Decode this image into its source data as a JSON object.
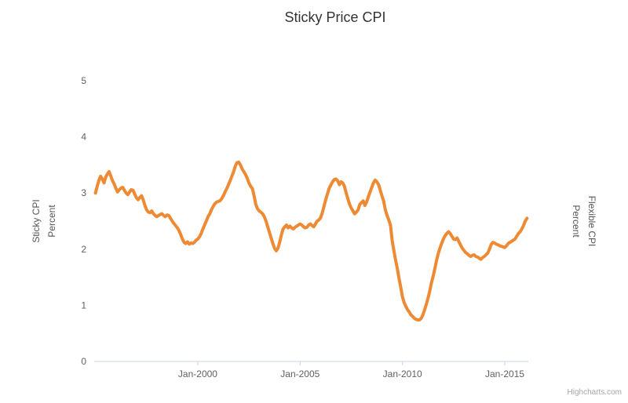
{
  "chart": {
    "title": "Sticky Price CPI",
    "credit": "Highcharts.com",
    "left_axis_title_line1": "Sticky CPI",
    "left_axis_title_line2": "Percent",
    "right_axis_title_line1": "Flexible CPI",
    "right_axis_title_line2": "Percent"
  },
  "chart_data": {
    "type": "line",
    "title": "Sticky Price CPI",
    "xlabel": "",
    "ylabel_left": "Sticky CPI Percent",
    "ylabel_right": "Flexible CPI Percent",
    "grid": false,
    "legend": false,
    "ylim": [
      0,
      5
    ],
    "y_ticks": [
      0,
      1,
      2,
      3,
      4,
      5
    ],
    "x_ticks": [
      {
        "label": "Jan-2000",
        "month": "2000-01"
      },
      {
        "label": "Jan-2005",
        "month": "2005-01"
      },
      {
        "label": "Jan-2010",
        "month": "2010-01"
      },
      {
        "label": "Jan-2015",
        "month": "2015-01"
      }
    ],
    "axis_color": "#c8d4e0",
    "series": [
      {
        "name": "Sticky CPI",
        "color": "#ee8a34",
        "interval": "monthly",
        "start_month": "1995-01",
        "end_month": "2016-02",
        "values": [
          3.0,
          3.12,
          3.22,
          3.3,
          3.25,
          3.18,
          3.28,
          3.34,
          3.38,
          3.3,
          3.22,
          3.16,
          3.08,
          3.02,
          3.06,
          3.09,
          3.1,
          3.05,
          3.0,
          2.97,
          3.02,
          3.06,
          3.05,
          2.98,
          2.92,
          2.88,
          2.92,
          2.95,
          2.88,
          2.78,
          2.7,
          2.66,
          2.65,
          2.68,
          2.63,
          2.6,
          2.58,
          2.6,
          2.62,
          2.63,
          2.6,
          2.58,
          2.61,
          2.6,
          2.55,
          2.5,
          2.46,
          2.42,
          2.38,
          2.33,
          2.26,
          2.18,
          2.12,
          2.1,
          2.13,
          2.09,
          2.11,
          2.1,
          2.12,
          2.16,
          2.18,
          2.22,
          2.28,
          2.36,
          2.43,
          2.5,
          2.58,
          2.63,
          2.7,
          2.76,
          2.81,
          2.84,
          2.85,
          2.86,
          2.9,
          2.95,
          3.02,
          3.08,
          3.15,
          3.22,
          3.3,
          3.38,
          3.48,
          3.54,
          3.55,
          3.5,
          3.43,
          3.38,
          3.33,
          3.26,
          3.18,
          3.12,
          3.08,
          2.95,
          2.8,
          2.72,
          2.68,
          2.66,
          2.63,
          2.58,
          2.5,
          2.4,
          2.3,
          2.2,
          2.1,
          2.02,
          1.97,
          2.02,
          2.12,
          2.25,
          2.36,
          2.4,
          2.43,
          2.38,
          2.41,
          2.38,
          2.36,
          2.39,
          2.41,
          2.43,
          2.45,
          2.43,
          2.4,
          2.38,
          2.39,
          2.43,
          2.45,
          2.42,
          2.4,
          2.45,
          2.5,
          2.52,
          2.56,
          2.65,
          2.76,
          2.88,
          2.98,
          3.08,
          3.14,
          3.2,
          3.24,
          3.25,
          3.22,
          3.15,
          3.2,
          3.18,
          3.12,
          3.0,
          2.9,
          2.8,
          2.73,
          2.68,
          2.63,
          2.66,
          2.7,
          2.8,
          2.83,
          2.86,
          2.78,
          2.84,
          2.93,
          3.02,
          3.1,
          3.18,
          3.23,
          3.2,
          3.15,
          3.05,
          2.95,
          2.85,
          2.7,
          2.6,
          2.52,
          2.42,
          2.15,
          1.97,
          1.8,
          1.65,
          1.48,
          1.32,
          1.15,
          1.05,
          0.98,
          0.92,
          0.88,
          0.83,
          0.8,
          0.77,
          0.75,
          0.74,
          0.74,
          0.77,
          0.83,
          0.92,
          1.02,
          1.13,
          1.25,
          1.4,
          1.52,
          1.65,
          1.8,
          1.92,
          2.02,
          2.1,
          2.18,
          2.24,
          2.28,
          2.31,
          2.28,
          2.23,
          2.18,
          2.17,
          2.2,
          2.14,
          2.08,
          2.02,
          1.98,
          1.94,
          1.92,
          1.89,
          1.87,
          1.89,
          1.9,
          1.87,
          1.86,
          1.84,
          1.82,
          1.85,
          1.87,
          1.9,
          1.93,
          2.0,
          2.08,
          2.12,
          2.11,
          2.09,
          2.08,
          2.06,
          2.05,
          2.04,
          2.03,
          2.06,
          2.1,
          2.12,
          2.14,
          2.16,
          2.18,
          2.23,
          2.28,
          2.31,
          2.36,
          2.42,
          2.5,
          2.55
        ]
      }
    ]
  }
}
